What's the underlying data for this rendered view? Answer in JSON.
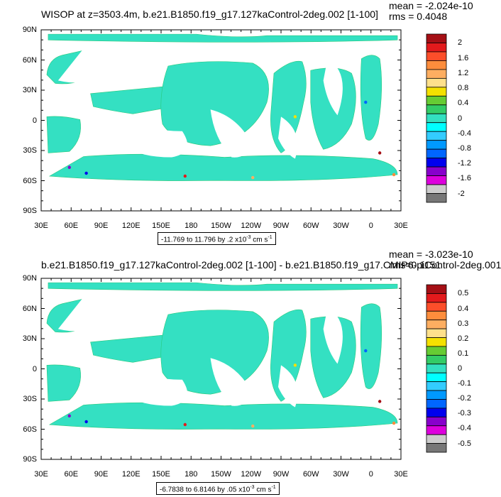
{
  "panels": [
    {
      "title": "WISOP at z=3503.4m, b.e21.B1850.f19_g17.127kaControl-2deg.002 [1-100]",
      "mean_text": "mean = -2.024e-10",
      "rms_text": "rms = 0.4048",
      "range_text": "-11.769 to 11.796 by .2 x10",
      "range_exp": "-3",
      "range_unit": " cm s",
      "range_unit_exp": "-1"
    },
    {
      "title": "b.e21.B1850.f19_g17.127kaControl-2deg.002 [1-100] - b.e21.B1850.f19_g17.CMIP6-piControl-2deg.001",
      "mean_text": "mean = -3.023e-10",
      "rms_text": "rms=0.1151",
      "range_text": "-6.7838 to 6.8146 by .05 x10",
      "range_exp": "-3",
      "range_unit": " cm s",
      "range_unit_exp": "-1"
    }
  ],
  "chart_data": [
    {
      "type": "heatmap",
      "map": "global ocean vertical velocity (lat-lon)",
      "x_ticks": [
        "30E",
        "60E",
        "90E",
        "120E",
        "150E",
        "180",
        "150W",
        "120W",
        "90W",
        "60W",
        "30W",
        "0",
        "30E"
      ],
      "y_ticks": [
        "90N",
        "60N",
        "30N",
        "0",
        "30S",
        "60S",
        "90S"
      ],
      "colorbar": {
        "labels": [
          "2",
          "1.6",
          "1.2",
          "0.8",
          "0.4",
          "0",
          "-0.4",
          "-0.8",
          "-1.2",
          "-1.6",
          "-2"
        ],
        "colors": [
          "#a50f15",
          "#e31a1c",
          "#fc4e2a",
          "#fd8d3c",
          "#fdae61",
          "#fee08b",
          "#f5e100",
          "#66cc33",
          "#33cc66",
          "#33e0c0",
          "#00ffff",
          "#33ccff",
          "#0099ff",
          "#0066ff",
          "#0000ee",
          "#8800cc",
          "#dd00dd",
          "#cccccc",
          "#777777"
        ]
      },
      "grid": false,
      "legend_placement": "right"
    },
    {
      "type": "heatmap",
      "map": "difference field (lat-lon)",
      "x_ticks": [
        "30E",
        "60E",
        "90E",
        "120E",
        "150E",
        "180",
        "150W",
        "120W",
        "90W",
        "60W",
        "30W",
        "0",
        "30E"
      ],
      "y_ticks": [
        "90N",
        "60N",
        "30N",
        "0",
        "30S",
        "60S",
        "90S"
      ],
      "colorbar": {
        "labels": [
          "0.5",
          "0.4",
          "0.3",
          "0.2",
          "0.1",
          "0",
          "-0.1",
          "-0.2",
          "-0.3",
          "-0.4",
          "-0.5"
        ],
        "colors": [
          "#a50f15",
          "#e31a1c",
          "#fc4e2a",
          "#fd8d3c",
          "#fdae61",
          "#fee08b",
          "#f5e100",
          "#66cc33",
          "#33cc66",
          "#33e0c0",
          "#00ffff",
          "#33ccff",
          "#0099ff",
          "#0066ff",
          "#0000ee",
          "#8800cc",
          "#dd00dd",
          "#cccccc",
          "#777777"
        ]
      },
      "grid": false,
      "legend_placement": "right"
    }
  ]
}
